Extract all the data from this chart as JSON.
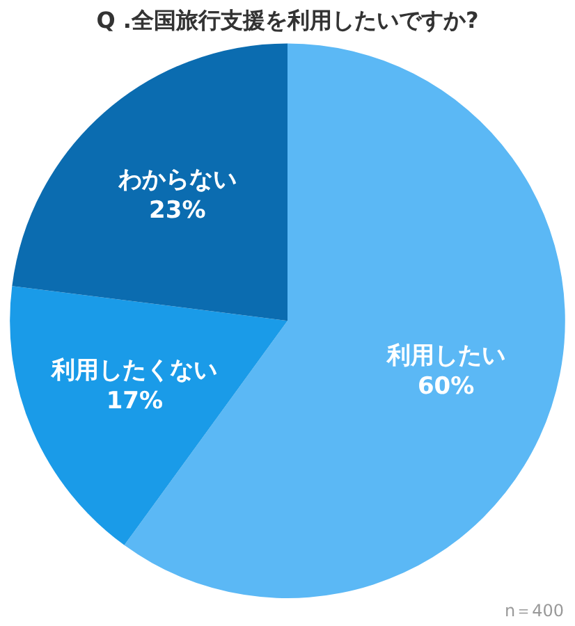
{
  "chart_data": {
    "type": "pie",
    "title": "Q .全国旅行支援を利用したいですか?",
    "categories": [
      "利用したい",
      "利用したくない",
      "わからない"
    ],
    "values": [
      60,
      17,
      23
    ],
    "colors": [
      "#5bb8f5",
      "#1a9be8",
      "#0b6cb0"
    ],
    "value_labels": [
      "60%",
      "17%",
      "23%"
    ],
    "legend": false,
    "annotations": [
      "n＝400"
    ]
  }
}
